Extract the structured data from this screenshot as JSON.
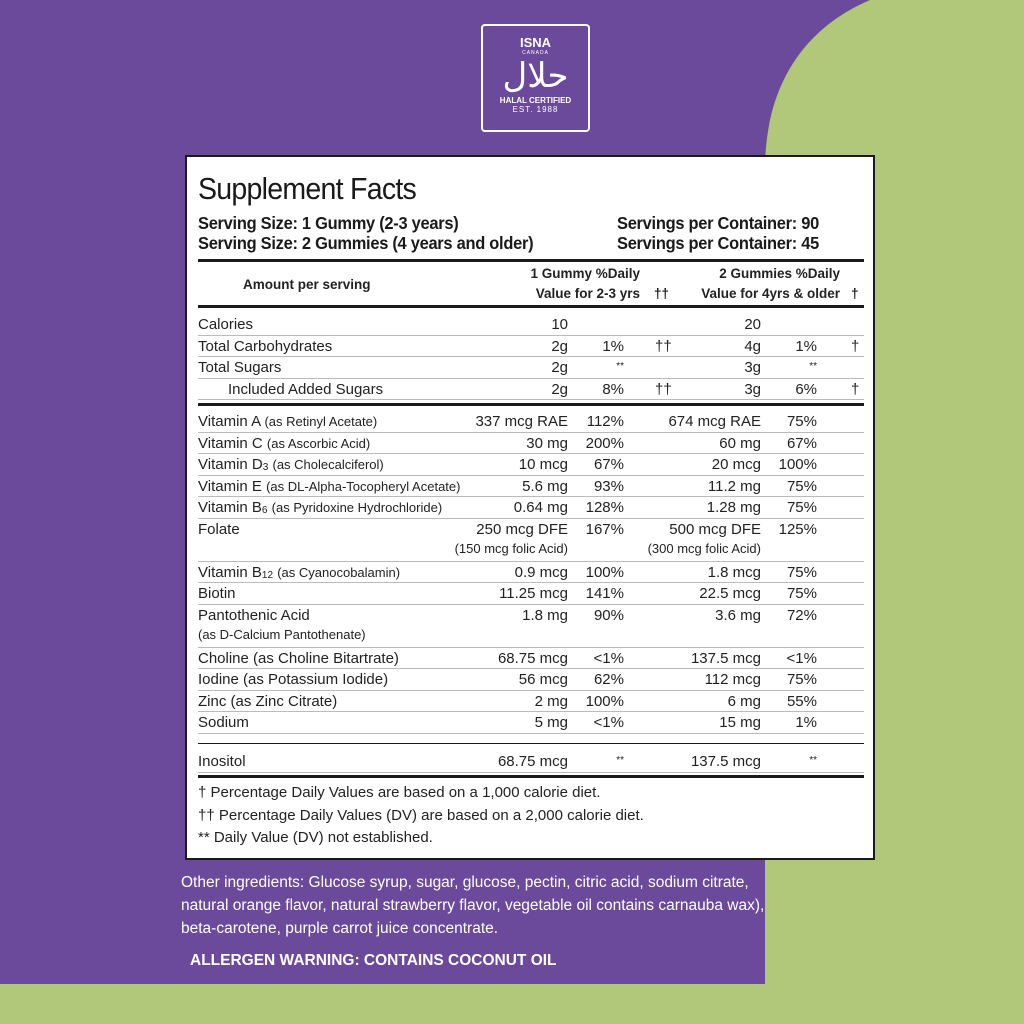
{
  "logo": {
    "name": "ISNA",
    "sub": "CANADA",
    "arabic": "حلال",
    "certified": "HALAL CERTIFIED",
    "est": "EST. 1988"
  },
  "facts": {
    "title": "Supplement Facts",
    "serving": [
      {
        "size": "Serving Size: 1 Gummy (2-3 years)",
        "per": "Servings per Container: 90"
      },
      {
        "size": "Serving Size: 2 Gummies (4 years and older)",
        "per": "Servings per Container: 45"
      }
    ],
    "header": {
      "amount": "Amount per serving",
      "col1": "1 Gummy %Daily",
      "col1b": "Value for 2-3 yrs",
      "mark1": "††",
      "col2": "2 Gummies %Daily",
      "col2b": "Value for 4yrs & older",
      "mark2": "†"
    },
    "sections": [
      {
        "rows": [
          {
            "name": "Calories",
            "amt1": "10",
            "amt2": "20"
          },
          {
            "name": "Total Carbohydrates",
            "amt1": "2g",
            "dv1": "1%",
            "mk1": "††",
            "amt2": "4g",
            "dv2": "1%",
            "mk2": "†"
          },
          {
            "name": "Total Sugars",
            "amt1": "2g",
            "dv1": "**",
            "amt2": "3g",
            "dv2": "**"
          },
          {
            "name": "Included Added Sugars",
            "indent": true,
            "amt1": "2g",
            "dv1": "8%",
            "mk1": "††",
            "amt2": "3g",
            "dv2": "6%",
            "mk2": "†"
          }
        ]
      },
      {
        "rows": [
          {
            "name": "Vitamin A",
            "note": "(as Retinyl Acetate)",
            "amt1": "337 mcg RAE",
            "dv1": "112%",
            "amt2": "674 mcg RAE",
            "dv2": "75%"
          },
          {
            "name": "Vitamin C",
            "note": "(as Ascorbic Acid)",
            "amt1": "30 mg",
            "dv1": "200%",
            "amt2": "60 mg",
            "dv2": "67%"
          },
          {
            "name": "Vitamin D",
            "sub": "3",
            "note": "(as Cholecalciferol)",
            "amt1": "10 mcg",
            "dv1": "67%",
            "amt2": "20 mcg",
            "dv2": "100%"
          },
          {
            "name": "Vitamin E",
            "note": "(as DL-Alpha-Tocopheryl Acetate)",
            "amt1": "5.6 mg",
            "dv1": "93%",
            "amt2": "11.2 mg",
            "dv2": "75%"
          },
          {
            "name": "Vitamin B",
            "sub": "6",
            "note": "(as Pyridoxine Hydrochloride)",
            "amt1": "0.64 mg",
            "dv1": "128%",
            "amt2": "1.28 mg",
            "dv2": "75%"
          },
          {
            "name": "Folate",
            "amt1": "250 mcg DFE",
            "amt1note": "(150 mcg folic Acid)",
            "dv1": "167%",
            "amt2": "500 mcg DFE",
            "amt2note": "(300 mcg folic Acid)",
            "dv2": "125%"
          },
          {
            "name": "Vitamin B",
            "sub": "12",
            "note": "(as Cyanocobalamin)",
            "amt1": "0.9 mcg",
            "dv1": "100%",
            "amt2": "1.8 mcg",
            "dv2": "75%"
          },
          {
            "name": "Biotin",
            "amt1": "11.25 mcg",
            "dv1": "141%",
            "amt2": "22.5 mcg",
            "dv2": "75%"
          },
          {
            "name": "Pantothenic Acid",
            "note2": "(as D-Calcium Pantothenate)",
            "amt1": "1.8 mg",
            "dv1": "90%",
            "amt2": "3.6 mg",
            "dv2": "72%"
          },
          {
            "name": "Choline (as Choline Bitartrate)",
            "amt1": "68.75 mcg",
            "dv1": "<1%",
            "amt2": "137.5 mcg",
            "dv2": "<1%"
          },
          {
            "name": "Iodine (as Potassium Iodide)",
            "amt1": "56 mcg",
            "dv1": "62%",
            "amt2": "112 mcg",
            "dv2": "75%"
          },
          {
            "name": "Zinc (as Zinc Citrate)",
            "amt1": "2  mg",
            "dv1": "100%",
            "amt2": "6 mg",
            "dv2": "55%"
          },
          {
            "name": "Sodium",
            "amt1": "5 mg",
            "dv1": "<1%",
            "amt2": "15 mg",
            "dv2": "1%"
          }
        ]
      },
      {
        "rows": [
          {
            "name": "Inositol",
            "amt1": "68.75 mcg",
            "dv1": "**",
            "amt2": "137.5 mcg",
            "dv2": "**"
          }
        ]
      }
    ],
    "footnotes": [
      "† Percentage Daily Values are based on a 1,000 calorie diet.",
      "†† Percentage Daily Values (DV) are based on a 2,000 calorie diet.",
      "** Daily Value (DV) not established."
    ]
  },
  "ingredients": "Other ingredients: Glucose syrup, sugar, glucose, pectin, citric acid, sodium citrate, natural orange flavor, natural strawberry flavor,  vegetable oil contains carnauba wax), beta-carotene, purple carrot juice concentrate.",
  "allergen": "ALLERGEN WARNING: CONTAINS COCONUT OIL"
}
